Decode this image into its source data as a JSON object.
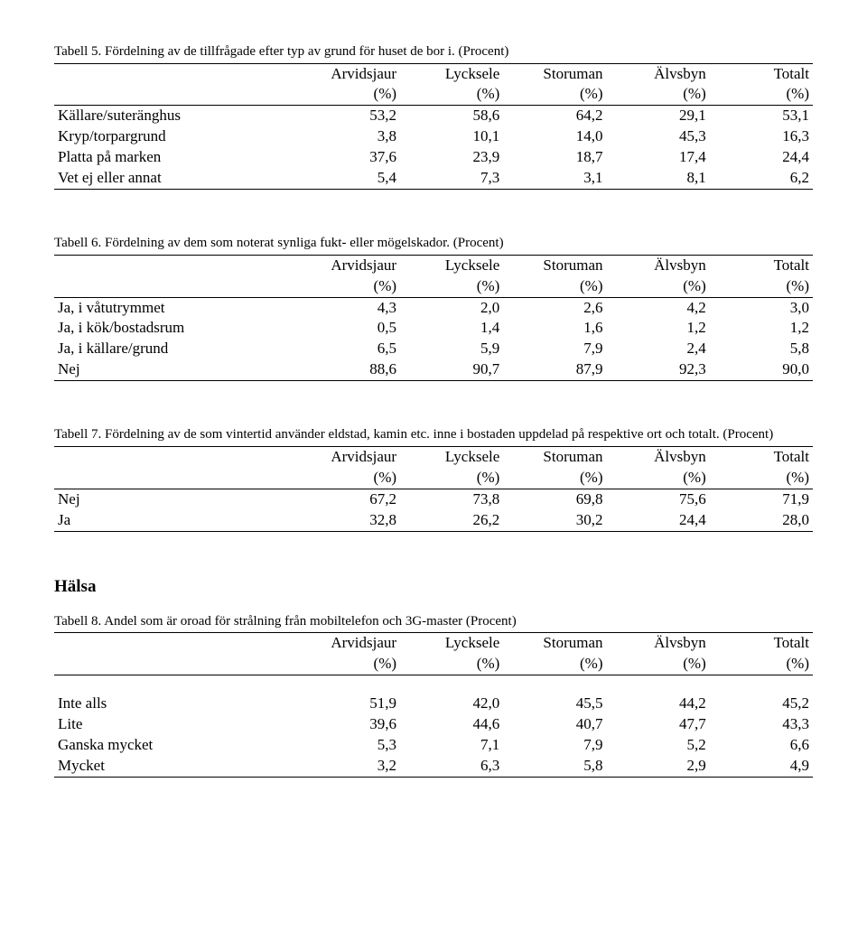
{
  "tables": [
    {
      "caption": "Tabell 5.  Fördelning av de tillfrågade efter typ av grund för huset de bor i. (Procent)",
      "columns": [
        "Arvidsjaur",
        "Lycksele",
        "Storuman",
        "Älvsbyn",
        "Totalt"
      ],
      "subcolumns": [
        "(%)",
        "(%)",
        "(%)",
        "(%)",
        "(%)"
      ],
      "rowlabel_header": "",
      "rows": [
        {
          "label": "Källare/suteränghus",
          "vals": [
            "53,2",
            "58,6",
            "64,2",
            "29,1",
            "53,1"
          ]
        },
        {
          "label": "Kryp/torpargrund",
          "vals": [
            "3,8",
            "10,1",
            "14,0",
            "45,3",
            "16,3"
          ]
        },
        {
          "label": "Platta på marken",
          "vals": [
            "37,6",
            "23,9",
            "18,7",
            "17,4",
            "24,4"
          ]
        },
        {
          "label": "Vet ej eller annat",
          "vals": [
            "5,4",
            "7,3",
            "3,1",
            "8,1",
            "6,2"
          ]
        }
      ]
    },
    {
      "caption": "Tabell 6.  Fördelning av dem som noterat synliga fukt- eller mögelskador. (Procent)",
      "columns": [
        "Arvidsjaur",
        "Lycksele",
        "Storuman",
        "Älvsbyn",
        "Totalt"
      ],
      "subcolumns": [
        "(%)",
        "(%)",
        "(%)",
        "(%)",
        "(%)"
      ],
      "rowlabel_header": "",
      "rows": [
        {
          "label": "Ja, i våtutrymmet",
          "vals": [
            "4,3",
            "2,0",
            "2,6",
            "4,2",
            "3,0"
          ]
        },
        {
          "label": "Ja, i kök/bostadsrum",
          "vals": [
            "0,5",
            "1,4",
            "1,6",
            "1,2",
            "1,2"
          ]
        },
        {
          "label": "Ja, i källare/grund",
          "vals": [
            "6,5",
            "5,9",
            "7,9",
            "2,4",
            "5,8"
          ]
        },
        {
          "label": "Nej",
          "vals": [
            "88,6",
            "90,7",
            "87,9",
            "92,3",
            "90,0"
          ]
        }
      ]
    },
    {
      "caption": "Tabell 7.  Fördelning av de som vintertid använder eldstad, kamin etc. inne i bostaden uppdelad på respektive ort och totalt. (Procent)",
      "columns": [
        "Arvidsjaur",
        "Lycksele",
        "Storuman",
        "Älvsbyn",
        "Totalt"
      ],
      "subcolumns": [
        "(%)",
        "(%)",
        "(%)",
        "(%)",
        "(%)"
      ],
      "rowlabel_header": "",
      "rows": [
        {
          "label": "Nej",
          "vals": [
            "67,2",
            "73,8",
            "69,8",
            "75,6",
            "71,9"
          ]
        },
        {
          "label": "Ja",
          "vals": [
            "32,8",
            "26,2",
            "30,2",
            "24,4",
            "28,0"
          ]
        }
      ]
    },
    {
      "caption": "Tabell 8.  Andel som är oroad för strålning från mobiltelefon och 3G-master (Procent)",
      "columns": [
        "Arvidsjaur",
        "Lycksele",
        "Storuman",
        "Älvsbyn",
        "Totalt"
      ],
      "subcolumns": [
        "(%)",
        "(%)",
        "(%)",
        "(%)",
        "(%)"
      ],
      "rowlabel_header": "",
      "gap_before_rows": true,
      "rows": [
        {
          "label": "Inte alls",
          "vals": [
            "51,9",
            "42,0",
            "45,5",
            "44,2",
            "45,2"
          ]
        },
        {
          "label": "Lite",
          "vals": [
            "39,6",
            "44,6",
            "40,7",
            "47,7",
            "43,3"
          ]
        },
        {
          "label": "Ganska mycket",
          "vals": [
            "5,3",
            "7,1",
            "7,9",
            "5,2",
            "6,6"
          ]
        },
        {
          "label": "Mycket",
          "vals": [
            "3,2",
            "6,3",
            "5,8",
            "2,9",
            "4,9"
          ]
        }
      ]
    }
  ],
  "section_heading": "Hälsa",
  "section_heading_before_table_index": 3
}
